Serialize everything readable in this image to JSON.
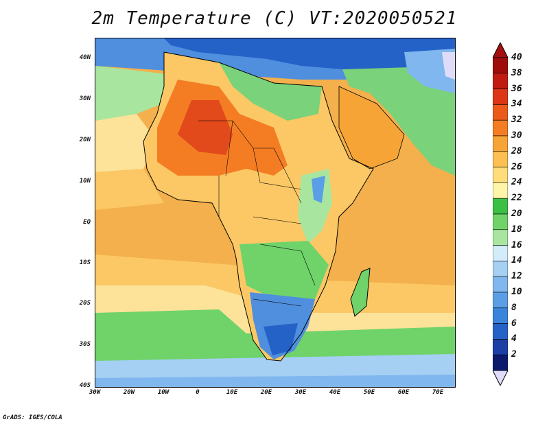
{
  "title": "2m Temperature (C) VT:2020050521",
  "credit": "GrADS: IGES/COLA",
  "lat_labels": [
    "40N",
    "30N",
    "20N",
    "10N",
    "EQ",
    "10S",
    "20S",
    "30S",
    "40S"
  ],
  "lon_labels": [
    "30W",
    "20W",
    "10W",
    "0",
    "10E",
    "20E",
    "30E",
    "40E",
    "50E",
    "60E",
    "70E"
  ],
  "colorbar": {
    "levels": [
      "2",
      "4",
      "6",
      "8",
      "10",
      "12",
      "14",
      "16",
      "18",
      "20",
      "22",
      "24",
      "26",
      "28",
      "30",
      "32",
      "34",
      "36",
      "38",
      "40"
    ],
    "colors": [
      "#0c1a6e",
      "#1c3fa6",
      "#2462c8",
      "#3a85dc",
      "#5a9fe6",
      "#7fb7ee",
      "#a6cff4",
      "#d2ecfa",
      "#a8e6a0",
      "#6fd36a",
      "#3bbf45",
      "#fff5a8",
      "#ffdd7a",
      "#fbbf52",
      "#f7a437",
      "#f47d24",
      "#ec5a1a",
      "#dc3614",
      "#c01c10",
      "#9e0d0a"
    ],
    "over_color": "#a3100f",
    "under_color": "#dedcf8"
  },
  "map": {
    "colors": {
      "ocean_warm": "#f3b04c",
      "ocean_mid": "#fbc865",
      "ocean_cool": "#fde39a",
      "ocean_south": "#66cc66",
      "land_hot": "#e2491b",
      "land_green": "#7ad27a",
      "land_cool": "#4f8fdd",
      "coast": "#000000"
    }
  }
}
